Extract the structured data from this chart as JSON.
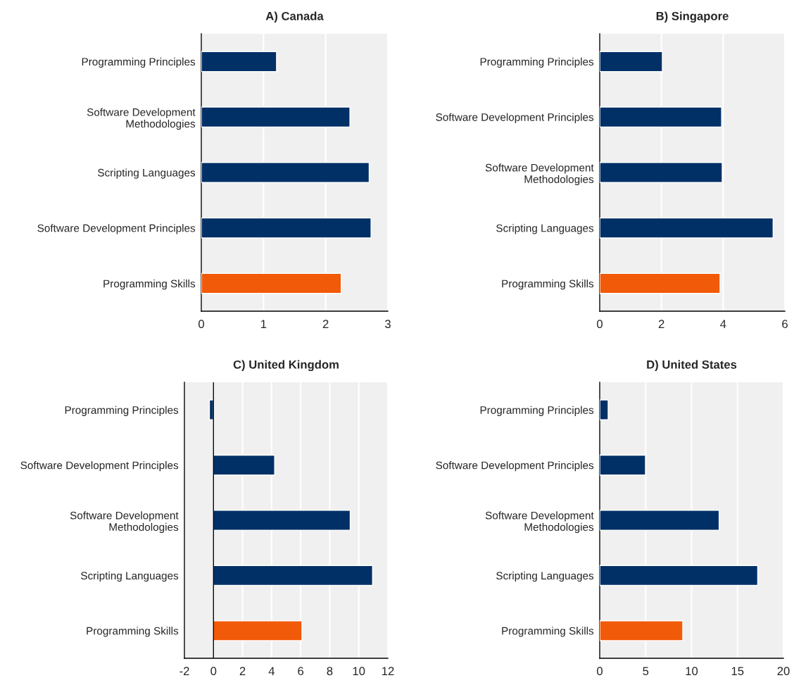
{
  "chart_data": [
    {
      "type": "bar",
      "orientation": "horizontal",
      "title": "A) Canada",
      "categories": [
        "Programming Principles",
        "Software Development\nMethodologies",
        "Scripting Languages",
        "Software Development Principles",
        "Programming Skills"
      ],
      "values": [
        1.21,
        2.39,
        2.7,
        2.73,
        2.25
      ],
      "colors": [
        "#003066",
        "#003066",
        "#003066",
        "#003066",
        "#f15a09"
      ],
      "xlim": [
        0,
        3
      ],
      "xticks": [
        0,
        1,
        2,
        3
      ],
      "grid": "x"
    },
    {
      "type": "bar",
      "orientation": "horizontal",
      "title": "B) Singapore",
      "categories": [
        "Programming Principles",
        "Software Development Principles",
        "Software Development\nMethodologies",
        "Scripting Languages",
        "Programming Skills"
      ],
      "values": [
        2.03,
        3.95,
        3.97,
        5.62,
        3.9
      ],
      "colors": [
        "#003066",
        "#003066",
        "#003066",
        "#003066",
        "#f15a09"
      ],
      "xlim": [
        0,
        6
      ],
      "xticks": [
        0,
        2,
        4,
        6
      ],
      "grid": "x"
    },
    {
      "type": "bar",
      "orientation": "horizontal",
      "title": "C) United Kingdom",
      "categories": [
        "Programming Principles",
        "Software Development Principles",
        "Software Development\nMethodologies",
        "Scripting Languages",
        "Programming Skills"
      ],
      "values": [
        -0.28,
        4.21,
        9.41,
        10.95,
        6.09
      ],
      "colors": [
        "#003066",
        "#003066",
        "#003066",
        "#003066",
        "#f15a09"
      ],
      "xlim": [
        -2,
        12
      ],
      "xticks": [
        -2,
        0,
        2,
        4,
        6,
        8,
        10,
        12
      ],
      "grid": "x"
    },
    {
      "type": "bar",
      "orientation": "horizontal",
      "title": "D) United States",
      "categories": [
        "Programming Principles",
        "Software Development Principles",
        "Software Development\nMethodologies",
        "Scripting Languages",
        "Programming Skills"
      ],
      "values": [
        0.92,
        4.98,
        13.0,
        17.2,
        9.04
      ],
      "colors": [
        "#003066",
        "#003066",
        "#003066",
        "#003066",
        "#f15a09"
      ],
      "xlim": [
        0,
        20
      ],
      "xticks": [
        0,
        5,
        10,
        15,
        20
      ],
      "grid": "x"
    }
  ]
}
